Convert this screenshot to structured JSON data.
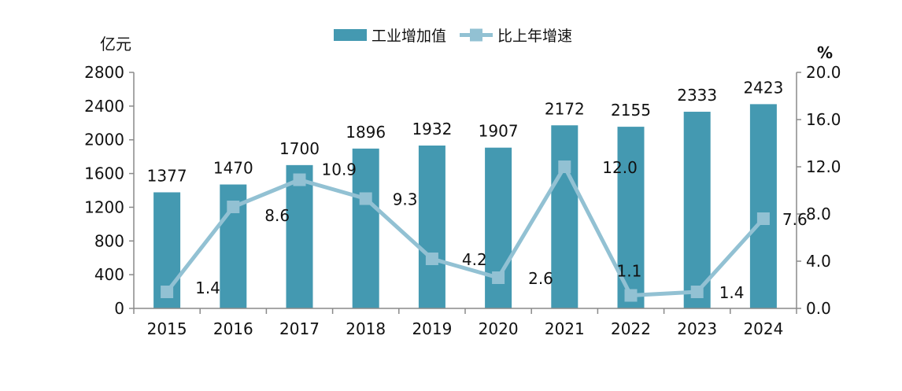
{
  "chart_data": {
    "type": "bar+line",
    "categories": [
      "2015",
      "2016",
      "2017",
      "2018",
      "2019",
      "2020",
      "2021",
      "2022",
      "2023",
      "2024"
    ],
    "series": [
      {
        "name": "工业增加值",
        "type": "bar",
        "axis": "left",
        "values": [
          1377,
          1470,
          1700,
          1896,
          1932,
          1907,
          2172,
          2155,
          2333,
          2423
        ]
      },
      {
        "name": "比上年增速",
        "type": "line",
        "axis": "right",
        "values": [
          1.4,
          8.6,
          10.9,
          9.3,
          4.2,
          2.6,
          12.0,
          1.1,
          1.4,
          7.6
        ]
      }
    ],
    "line_labels": [
      "1.4",
      "8.6",
      "10.9",
      "9.3",
      "4.2",
      "2.6",
      "12.0",
      "1.1",
      "1.4",
      "7.6"
    ],
    "y_left": {
      "unit": "亿元",
      "ylim": [
        0,
        2800
      ],
      "ticks": [
        "0",
        "400",
        "800",
        "1200",
        "1600",
        "2000",
        "2400",
        "2800"
      ]
    },
    "y_right": {
      "unit": "%",
      "ylim": [
        0,
        20
      ],
      "ticks": [
        "0.0",
        "4.0",
        "8.0",
        "12.0",
        "16.0",
        "20.0"
      ]
    },
    "legend_position": "top-center",
    "grid": false,
    "colors": {
      "bar": "#4499b1",
      "line": "#92c1d3",
      "marker": "#92c1d3",
      "axis": "#8a8a8a"
    }
  }
}
